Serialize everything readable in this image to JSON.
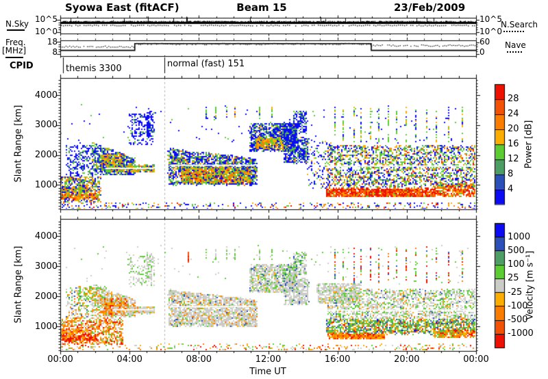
{
  "title": {
    "left": "Syowa East (fitACF)",
    "center": "Beam 15",
    "right": "23/Feb/2009"
  },
  "panels": {
    "nsky": {
      "label": "N.Sky",
      "left_ticks": [
        "10^5",
        "10^0"
      ],
      "right_ticks": [
        "10^5",
        "10^0"
      ],
      "right_legend": "N.Search",
      "level_log": 4.0,
      "search_level_log": 3.6,
      "log_min": 0,
      "log_max": 5
    },
    "freq": {
      "label_line1": "Freq.",
      "label_line2": "[MHz]",
      "left_ticks": [
        "18",
        "8"
      ],
      "right_ticks": [
        "60",
        "0"
      ],
      "right_legend": "Nave",
      "ymin": 8,
      "ymax": 18,
      "right_min": 0,
      "right_max": 60,
      "freq_segments": [
        {
          "t0": 0.0,
          "t1": 4.3,
          "mhz": 11.0
        },
        {
          "t0": 4.3,
          "t1": 17.95,
          "mhz": 16.5
        },
        {
          "t0": 17.95,
          "t1": 24.0,
          "mhz": 11.0
        }
      ],
      "nave_segments": [
        {
          "t0": 0.0,
          "t1": 4.3,
          "nave": 38
        },
        {
          "t0": 4.3,
          "t1": 17.95,
          "nave": 52
        },
        {
          "t0": 17.95,
          "t1": 24.0,
          "nave": 44
        }
      ]
    },
    "cpid": {
      "label": "CPID",
      "entries": [
        {
          "t": 0.15,
          "text": "themis 3300"
        },
        {
          "t": 6.0,
          "text": "normal (fast) 151"
        }
      ]
    }
  },
  "xaxis": {
    "label": "Time UT",
    "tick_labels": [
      "00:00",
      "04:00",
      "08:00",
      "12:00",
      "16:00",
      "20:00",
      "00:00"
    ],
    "tick_hours": [
      0,
      4,
      8,
      12,
      16,
      20,
      24
    ],
    "minor_every_h": 1,
    "tmin": 0,
    "tmax": 24
  },
  "yaxis": {
    "label": "Slant Range [km]",
    "tick_values": [
      1000,
      2000,
      3000,
      4000
    ],
    "rmin": 180,
    "rmax": 4580,
    "minor_every_km": 100
  },
  "palette": {
    "red": "#ee1000",
    "orangered": "#f35103",
    "orange": "#fb7d00",
    "amber": "#fcae00",
    "green": "#5ccc33",
    "seagreen": "#4d9e64",
    "mblue": "#2b50b7",
    "blue": "#0b0cf4",
    "gray": "#cbccc6"
  },
  "colorbars": {
    "power": {
      "label": "Power [dB]",
      "tick_labels": [
        "28",
        "24",
        "20",
        "16",
        "12",
        "8",
        "4"
      ],
      "segments_top_to_bottom": [
        "red",
        "orangered",
        "orange",
        "amber",
        "green",
        "seagreen",
        "mblue",
        "blue"
      ]
    },
    "velocity": {
      "label": "Velocity [m s⁻¹]",
      "tick_labels": [
        "1000",
        "500",
        "100",
        "25",
        "-25",
        "-100",
        "-500",
        "-1000"
      ],
      "segments_top_to_bottom": [
        "blue",
        "mblue",
        "seagreen",
        "green",
        "gray",
        "amber",
        "orange",
        "orangered",
        "red"
      ]
    }
  },
  "chart_data": [
    {
      "id": "power",
      "type": "heatmap",
      "title": "Power [dB]",
      "xlabel": "Time UT",
      "ylabel": "Slant Range [km]",
      "xlim_hours": [
        0,
        24
      ],
      "ylim_km": [
        180,
        4580
      ],
      "value_scale_db": [
        4,
        8,
        12,
        16,
        20,
        24,
        28
      ],
      "mode_boundary_hour": 6.0,
      "regions": [
        {
          "t0": 0,
          "t1": 24,
          "r0": 180,
          "r1": 430,
          "n": 360,
          "mix": {
            "blue": 0.4,
            "green": 0.15,
            "amber": 0.15,
            "orange": 0.15,
            "red": 0.1,
            "seagreen": 0.05
          }
        },
        {
          "t0": 0,
          "t1": 2.3,
          "r0": 430,
          "r1": 1300,
          "n": 550,
          "mix": {
            "blue": 0.3,
            "seagreen": 0.15,
            "green": 0.2,
            "amber": 0.15,
            "orange": 0.2
          }
        },
        {
          "t0": 0,
          "t1": 2.1,
          "r0": 560,
          "r1": 720,
          "n": 240,
          "mix": {
            "orange": 0.3,
            "amber": 0.25,
            "green": 0.2,
            "red": 0.15,
            "blue": 0.1
          }
        },
        {
          "t0": 0,
          "t1": 1.7,
          "r0": 760,
          "r1": 920,
          "n": 190,
          "mix": {
            "green": 0.3,
            "amber": 0.25,
            "orange": 0.2,
            "blue": 0.25
          }
        },
        {
          "t0": 0.3,
          "t1": 1.9,
          "r0": 1300,
          "r1": 2350,
          "n": 220,
          "mix": {
            "blue": 0.75,
            "seagreen": 0.15,
            "green": 0.1
          }
        },
        {
          "t0": 1.8,
          "t1": 4.3,
          "r0": 1350,
          "r1": 2450,
          "n": 800,
          "topEnd": 1900,
          "mix": {
            "blue": 0.5,
            "seagreen": 0.2,
            "green": 0.2,
            "amber": 0.1
          }
        },
        {
          "t0": 2.3,
          "t1": 3.6,
          "r0": 1600,
          "r1": 2050,
          "n": 280,
          "mix": {
            "green": 0.3,
            "amber": 0.3,
            "orange": 0.2,
            "blue": 0.2
          }
        },
        {
          "t0": 2.6,
          "t1": 5.4,
          "r0": 1450,
          "r1": 1680,
          "n": 450,
          "mix": {
            "green": 0.3,
            "amber": 0.25,
            "orange": 0.2,
            "blue": 0.15,
            "seagreen": 0.1
          }
        },
        {
          "t0": 3.9,
          "t1": 5.4,
          "r0": 2350,
          "r1": 3400,
          "n": 160,
          "mix": {
            "blue": 0.85,
            "green": 0.15
          }
        },
        {
          "t0": 4.95,
          "t1": 5.25,
          "r0": 2600,
          "r1": 3500,
          "n": 80,
          "mix": {
            "blue": 0.9,
            "green": 0.1
          }
        },
        {
          "t0": 6.2,
          "t1": 11.3,
          "r0": 1020,
          "r1": 2250,
          "n": 2200,
          "topEnd": 1900,
          "mix": {
            "blue": 0.45,
            "seagreen": 0.18,
            "green": 0.2,
            "amber": 0.1,
            "orange": 0.07
          }
        },
        {
          "t0": 6.9,
          "t1": 10.9,
          "r0": 1080,
          "r1": 1600,
          "n": 850,
          "mix": {
            "green": 0.3,
            "amber": 0.27,
            "orange": 0.25,
            "blue": 0.1,
            "red": 0.08
          }
        },
        {
          "t0": 10.9,
          "t1": 13.6,
          "r0": 2150,
          "r1": 3080,
          "n": 1000,
          "mix": {
            "blue": 0.6,
            "seagreen": 0.15,
            "green": 0.15,
            "amber": 0.1
          }
        },
        {
          "t0": 11.2,
          "t1": 12.8,
          "r0": 2250,
          "r1": 2600,
          "n": 360,
          "mix": {
            "green": 0.3,
            "amber": 0.3,
            "orange": 0.25,
            "blue": 0.15
          }
        },
        {
          "t0": 12.8,
          "t1": 13.6,
          "r0": 2450,
          "r1": 3100,
          "n": 180,
          "mix": {
            "blue": 0.7,
            "seagreen": 0.15,
            "green": 0.15
          }
        },
        {
          "t0": 13.4,
          "t1": 14.2,
          "r0": 2750,
          "r1": 3480,
          "n": 150,
          "mix": {
            "blue": 0.7,
            "seagreen": 0.15,
            "green": 0.15
          }
        },
        {
          "t0": 12.9,
          "t1": 14.3,
          "r0": 1750,
          "r1": 2600,
          "n": 450,
          "mix": {
            "blue": 0.6,
            "seagreen": 0.2,
            "green": 0.15,
            "amber": 0.05
          }
        },
        {
          "t0": 14.2,
          "t1": 15.6,
          "r0": 900,
          "r1": 2500,
          "n": 130,
          "mix": {
            "blue": 0.6,
            "green": 0.2,
            "amber": 0.2
          }
        },
        {
          "t0": 15.3,
          "t1": 21.6,
          "r0": 620,
          "r1": 900,
          "n": 1400,
          "mix": {
            "red": 0.45,
            "orangered": 0.2,
            "orange": 0.2,
            "amber": 0.1,
            "green": 0.05
          }
        },
        {
          "t0": 21.6,
          "t1": 24,
          "r0": 640,
          "r1": 1050,
          "n": 400,
          "mix": {
            "red": 0.3,
            "orangered": 0.2,
            "orange": 0.25,
            "amber": 0.15,
            "green": 0.1
          }
        },
        {
          "t0": 15.4,
          "t1": 24,
          "r0": 950,
          "r1": 2350,
          "n": 2200,
          "mix": {
            "blue": 0.3,
            "green": 0.25,
            "seagreen": 0.15,
            "amber": 0.15,
            "orange": 0.1,
            "red": 0.05
          }
        },
        {
          "t0": 0,
          "t1": 24,
          "r0": 2400,
          "r1": 3700,
          "n": 110,
          "mix": {
            "blue": 0.8,
            "green": 0.2
          }
        }
      ],
      "columns": [
        {
          "times": [
            8.35,
            8.9,
            9.6,
            10.05,
            11.45,
            12.15
          ],
          "r0": 3250,
          "r1": 3620,
          "n": 13,
          "mix": {
            "amber": 0.35,
            "green": 0.4,
            "blue": 0.25
          }
        },
        {
          "times": [
            15.8,
            16.3,
            16.9,
            17.35,
            17.9,
            18.35,
            18.9,
            19.4,
            19.9,
            20.5,
            21.1,
            21.7,
            22.4,
            23.2
          ],
          "r0": 2450,
          "r1": 3650,
          "n": 18,
          "mix": {
            "green": 0.5,
            "blue": 0.3,
            "amber": 0.2
          }
        }
      ],
      "white_gaps": [
        {
          "t0": 2.6,
          "t1": 5.4,
          "r": 1555
        },
        {
          "t0": 6.3,
          "t1": 11.2,
          "r": 1655
        },
        {
          "t0": 15.4,
          "t1": 24,
          "r": 1630
        }
      ]
    },
    {
      "id": "velocity",
      "type": "heatmap",
      "title": "Velocity [m s⁻¹]",
      "xlabel": "Time UT",
      "ylabel": "Slant Range [km]",
      "xlim_hours": [
        0,
        24
      ],
      "ylim_km": [
        180,
        4580
      ],
      "value_scale_ms": [
        -1000,
        -500,
        -100,
        -25,
        25,
        100,
        500,
        1000
      ],
      "mode_boundary_hour": 6.0,
      "regions": [
        {
          "t0": 0,
          "t1": 24,
          "r0": 180,
          "r1": 430,
          "n": 360,
          "mix": {
            "gray": 0.3,
            "green": 0.2,
            "amber": 0.15,
            "orange": 0.2,
            "red": 0.15
          }
        },
        {
          "t0": 0,
          "t1": 3.6,
          "r0": 430,
          "r1": 1300,
          "n": 820,
          "mix": {
            "orange": 0.35,
            "red": 0.2,
            "amber": 0.18,
            "gray": 0.15,
            "green": 0.12
          }
        },
        {
          "t0": 0,
          "t1": 2.1,
          "r0": 560,
          "r1": 720,
          "n": 240,
          "mix": {
            "red": 0.4,
            "orange": 0.35,
            "amber": 0.15,
            "gray": 0.1
          }
        },
        {
          "t0": 0,
          "t1": 1.7,
          "r0": 760,
          "r1": 920,
          "n": 190,
          "mix": {
            "orange": 0.4,
            "red": 0.25,
            "amber": 0.2,
            "gray": 0.15
          }
        },
        {
          "t0": 0.3,
          "t1": 1.9,
          "r0": 1300,
          "r1": 2350,
          "n": 200,
          "mix": {
            "gray": 0.5,
            "green": 0.2,
            "orange": 0.15,
            "amber": 0.1,
            "mblue": 0.05
          }
        },
        {
          "t0": 1.0,
          "t1": 2.6,
          "r0": 1900,
          "r1": 2350,
          "n": 90,
          "mix": {
            "green": 0.7,
            "amber": 0.3
          }
        },
        {
          "t0": 1.8,
          "t1": 4.3,
          "r0": 1350,
          "r1": 2450,
          "n": 780,
          "topEnd": 1900,
          "mix": {
            "gray": 0.6,
            "green": 0.13,
            "orange": 0.15,
            "amber": 0.12
          }
        },
        {
          "t0": 2.3,
          "t1": 3.8,
          "r0": 1450,
          "r1": 1950,
          "n": 280,
          "mix": {
            "orange": 0.45,
            "red": 0.15,
            "amber": 0.18,
            "gray": 0.22
          }
        },
        {
          "t0": 3.8,
          "t1": 5.4,
          "r0": 1450,
          "r1": 1680,
          "n": 280,
          "mix": {
            "gray": 0.7,
            "green": 0.1,
            "orange": 0.1,
            "amber": 0.1
          }
        },
        {
          "t0": 3.9,
          "t1": 5.4,
          "r0": 2350,
          "r1": 3400,
          "n": 150,
          "mix": {
            "gray": 0.75,
            "green": 0.25
          }
        },
        {
          "t0": 4.95,
          "t1": 5.25,
          "r0": 2600,
          "r1": 3500,
          "n": 70,
          "mix": {
            "gray": 0.8,
            "green": 0.2
          }
        },
        {
          "t0": 6.2,
          "t1": 11.3,
          "r0": 1020,
          "r1": 2250,
          "n": 2200,
          "topEnd": 1900,
          "mix": {
            "gray": 0.78,
            "green": 0.08,
            "amber": 0.06,
            "orange": 0.05,
            "mblue": 0.03
          }
        },
        {
          "t0": 10.9,
          "t1": 13.6,
          "r0": 2150,
          "r1": 3080,
          "n": 950,
          "mix": {
            "gray": 0.72,
            "green": 0.18,
            "amber": 0.05,
            "mblue": 0.05
          }
        },
        {
          "t0": 12.8,
          "t1": 13.6,
          "r0": 2450,
          "r1": 3100,
          "n": 170,
          "mix": {
            "gray": 0.6,
            "green": 0.3,
            "mblue": 0.1
          }
        },
        {
          "t0": 13.4,
          "t1": 14.2,
          "r0": 2750,
          "r1": 3480,
          "n": 140,
          "mix": {
            "gray": 0.6,
            "green": 0.3,
            "mblue": 0.1
          }
        },
        {
          "t0": 12.9,
          "t1": 14.3,
          "r0": 1750,
          "r1": 2600,
          "n": 440,
          "mix": {
            "gray": 0.82,
            "green": 0.1,
            "mblue": 0.08
          }
        },
        {
          "t0": 14.8,
          "t1": 17.3,
          "r0": 1800,
          "r1": 2460,
          "n": 560,
          "mix": {
            "gray": 0.85,
            "green": 0.1,
            "amber": 0.05
          }
        },
        {
          "t0": 15.4,
          "t1": 24,
          "r0": 1250,
          "r1": 2250,
          "n": 1800,
          "mix": {
            "gray": 0.6,
            "green": 0.25,
            "mblue": 0.05,
            "amber": 0.05,
            "orange": 0.05
          }
        },
        {
          "t0": 15.3,
          "t1": 24,
          "r0": 760,
          "r1": 1250,
          "n": 1400,
          "mix": {
            "green": 0.3,
            "seagreen": 0.25,
            "amber": 0.15,
            "orange": 0.12,
            "mblue": 0.08,
            "blue": 0.05,
            "red": 0.05
          }
        },
        {
          "t0": 15.4,
          "t1": 18.7,
          "r0": 600,
          "r1": 780,
          "n": 400,
          "mix": {
            "orange": 0.45,
            "amber": 0.3,
            "red": 0.25
          }
        },
        {
          "t0": 21.5,
          "t1": 24,
          "r0": 640,
          "r1": 900,
          "n": 240,
          "mix": {
            "orange": 0.4,
            "amber": 0.25,
            "red": 0.2,
            "green": 0.15
          }
        },
        {
          "t0": 0,
          "t1": 24,
          "r0": 2400,
          "r1": 3700,
          "n": 110,
          "mix": {
            "gray": 0.6,
            "green": 0.4
          }
        }
      ],
      "columns": [
        {
          "times": [
            8.35,
            8.9,
            9.6,
            10.05,
            11.45,
            12.15
          ],
          "r0": 3250,
          "r1": 3620,
          "n": 11,
          "mix": {
            "gray": 0.55,
            "green": 0.45
          }
        },
        {
          "times": [
            7.35
          ],
          "r0": 3150,
          "r1": 3500,
          "n": 22,
          "mix": {
            "red": 0.6,
            "orangered": 0.4
          }
        },
        {
          "times": [
            15.8,
            16.3,
            16.9,
            17.35,
            17.9,
            18.35,
            18.9,
            19.4,
            19.9,
            20.5,
            21.1,
            21.7,
            22.4,
            23.2
          ],
          "r0": 2450,
          "r1": 3650,
          "n": 16,
          "mix": {
            "green": 0.35,
            "red": 0.25,
            "mblue": 0.2,
            "orange": 0.2
          }
        }
      ],
      "white_gaps": [
        {
          "t0": 3.0,
          "t1": 5.4,
          "r": 1555
        },
        {
          "t0": 6.3,
          "t1": 11.2,
          "r": 1655
        },
        {
          "t0": 15.4,
          "t1": 24,
          "r": 1540
        }
      ]
    }
  ]
}
